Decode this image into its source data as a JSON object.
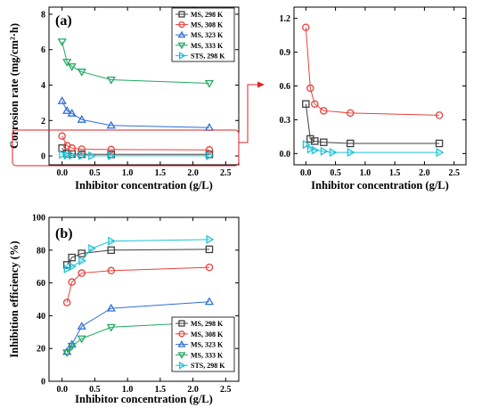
{
  "colors": {
    "ms298": "#404040",
    "ms308": "#e8413b",
    "ms323": "#2f6fd6",
    "ms333": "#22a862",
    "sts298": "#1ec3d8",
    "highlight": "#e0202a"
  },
  "legend_entries": [
    "MS, 298 K",
    "MS, 308 K",
    "MS, 323 K",
    "MS, 333 K",
    "STS, 298 K"
  ],
  "chart_data": [
    {
      "panel": "(a)",
      "type": "line",
      "markers": true,
      "xlabel": "Inhibitor concentration (g/L)",
      "ylabel": "Corrosion rate (mg/cm²·h)",
      "xlim": [
        -0.2,
        2.7
      ],
      "ylim": [
        -0.5,
        8.4
      ],
      "xticks": [
        "0.0",
        "0.5",
        "1.0",
        "1.5",
        "2.0",
        "2.5"
      ],
      "yticks": [
        "0",
        "2",
        "4",
        "6",
        "8"
      ],
      "legend": "top-right",
      "series": [
        {
          "name": "MS, 298 K",
          "marker": "square",
          "x": [
            0,
            0.075,
            0.15,
            0.3,
            0.75,
            2.25
          ],
          "y": [
            0.44,
            0.13,
            0.11,
            0.1,
            0.09,
            0.09
          ]
        },
        {
          "name": "MS, 308 K",
          "marker": "circle",
          "x": [
            0,
            0.075,
            0.15,
            0.3,
            0.75,
            2.25
          ],
          "y": [
            1.12,
            0.58,
            0.44,
            0.38,
            0.36,
            0.34
          ]
        },
        {
          "name": "MS, 323 K",
          "marker": "triangle-up",
          "x": [
            0,
            0.075,
            0.15,
            0.3,
            0.75,
            2.25
          ],
          "y": [
            3.1,
            2.55,
            2.4,
            2.05,
            1.72,
            1.6
          ]
        },
        {
          "name": "MS, 333 K",
          "marker": "triangle-down",
          "x": [
            0,
            0.075,
            0.15,
            0.3,
            0.75,
            2.25
          ],
          "y": [
            6.45,
            5.3,
            5.05,
            4.75,
            4.3,
            4.1
          ]
        },
        {
          "name": "STS, 298 K",
          "marker": "triangle-right",
          "x": [
            0,
            0.075,
            0.15,
            0.3,
            0.45,
            0.75,
            2.25
          ],
          "y": [
            0.08,
            0.04,
            0.03,
            0.02,
            0.01,
            0.01,
            0.01
          ]
        }
      ]
    },
    {
      "panel": "",
      "type": "line",
      "markers": true,
      "xlabel": "Inhibitor concentration (g/L)",
      "ylabel": "",
      "xlim": [
        -0.2,
        2.7
      ],
      "ylim": [
        -0.1,
        1.3
      ],
      "xticks": [
        "0.0",
        "0.5",
        "1.0",
        "1.5",
        "2.0",
        "2.5"
      ],
      "yticks": [
        "0.0",
        "0.3",
        "0.6",
        "0.9",
        "1.2"
      ],
      "series": [
        {
          "name": "MS, 298 K",
          "marker": "square",
          "x": [
            0,
            0.075,
            0.15,
            0.3,
            0.75,
            2.25
          ],
          "y": [
            0.44,
            0.13,
            0.11,
            0.1,
            0.09,
            0.09
          ]
        },
        {
          "name": "MS, 308 K",
          "marker": "circle",
          "x": [
            0,
            0.075,
            0.15,
            0.3,
            0.75,
            2.25
          ],
          "y": [
            1.12,
            0.58,
            0.44,
            0.38,
            0.36,
            0.34
          ]
        },
        {
          "name": "STS, 298 K",
          "marker": "triangle-right",
          "x": [
            0,
            0.075,
            0.15,
            0.3,
            0.45,
            0.75,
            2.25
          ],
          "y": [
            0.08,
            0.04,
            0.03,
            0.02,
            0.01,
            0.01,
            0.01
          ]
        }
      ]
    },
    {
      "panel": "(b)",
      "type": "line",
      "markers": true,
      "xlabel": "Inhibitor concentration (g/L)",
      "ylabel": "Inhibition efficiency (%)",
      "xlim": [
        -0.2,
        2.7
      ],
      "ylim": [
        0,
        100
      ],
      "xticks": [
        "0.0",
        "0.5",
        "1.0",
        "1.5",
        "2.0",
        "2.5"
      ],
      "yticks": [
        "0",
        "20",
        "40",
        "60",
        "80",
        "100"
      ],
      "legend": "bottom-right",
      "series": [
        {
          "name": "MS, 298 K",
          "marker": "square",
          "x": [
            0.075,
            0.15,
            0.3,
            0.75,
            2.25
          ],
          "y": [
            71,
            75.5,
            78,
            80,
            80.5
          ]
        },
        {
          "name": "MS, 308 K",
          "marker": "circle",
          "x": [
            0.075,
            0.15,
            0.3,
            0.75,
            2.25
          ],
          "y": [
            48,
            60.5,
            66,
            67.5,
            69.5
          ]
        },
        {
          "name": "MS, 323 K",
          "marker": "triangle-up",
          "x": [
            0.075,
            0.15,
            0.3,
            0.75,
            2.25
          ],
          "y": [
            18,
            22.5,
            33.5,
            44.5,
            48.5
          ]
        },
        {
          "name": "MS, 333 K",
          "marker": "triangle-down",
          "x": [
            0.075,
            0.15,
            0.3,
            0.75,
            2.25
          ],
          "y": [
            17.5,
            21.5,
            26,
            33,
            36
          ]
        },
        {
          "name": "STS, 298 K",
          "marker": "triangle-right",
          "x": [
            0.075,
            0.15,
            0.3,
            0.45,
            0.75,
            2.25
          ],
          "y": [
            68.5,
            70,
            73.5,
            81,
            85.5,
            86.5
          ]
        }
      ]
    }
  ]
}
